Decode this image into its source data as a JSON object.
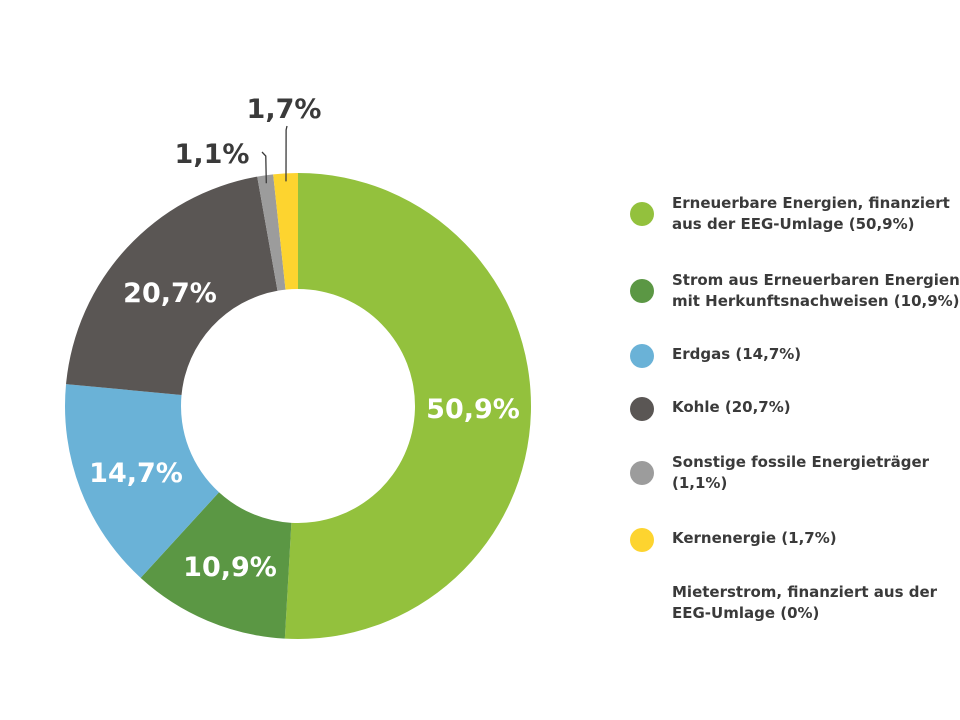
{
  "chart_data": {
    "type": "pie",
    "donut": true,
    "slices": [
      {
        "label": "Erneuerbare Energien, finanziert aus der EEG-Umlage (50,9%)",
        "value": 50.9,
        "value_label": "50,9%",
        "color": "#93c13d",
        "label_color": "#ffffff"
      },
      {
        "label": "Strom aus Erneuerbaren Energien mit Herkunftsnachweisen (10,9%)",
        "value": 10.9,
        "value_label": "10,9%",
        "color": "#5b9744",
        "label_color": "#ffffff"
      },
      {
        "label": "Erdgas (14,7%)",
        "value": 14.7,
        "value_label": "14,7%",
        "color": "#6ab2d7",
        "label_color": "#ffffff"
      },
      {
        "label": "Kohle (20,7%)",
        "value": 20.7,
        "value_label": "20,7%",
        "color": "#5a5654",
        "label_color": "#ffffff"
      },
      {
        "label": "Sonstige fossile Energieträger (1,1%)",
        "value": 1.1,
        "value_label": "1,1%",
        "color": "#9c9c9c",
        "label_color": "#3a3a3a"
      },
      {
        "label": "Kernenergie (1,7%)",
        "value": 1.7,
        "value_label": "1,7%",
        "color": "#fdd42f",
        "label_color": "#3a3a3a"
      }
    ],
    "legend_extra": [
      {
        "label": "Mieterstrom, finanziert aus der EEG-Umlage (0%)",
        "value": 0,
        "color": "#ffffff"
      }
    ],
    "legend_position": "right",
    "order": "clockwise starting top, reversed"
  }
}
